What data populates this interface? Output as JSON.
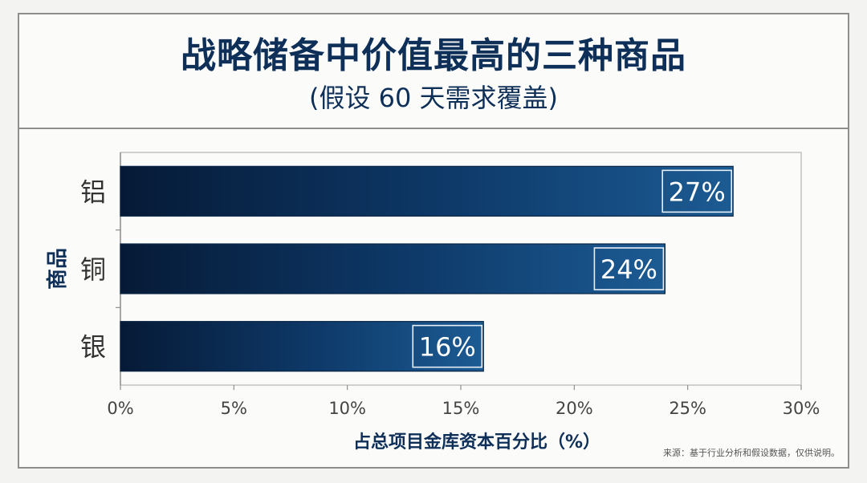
{
  "header": {
    "title": "战略储备中价值最高的三种商品",
    "subtitle": "(假设 60 天需求覆盖)"
  },
  "footnote": "来源：基于行业分析和假设数据，仅供说明。",
  "colors": {
    "bar_dark": "#061a36",
    "bar_light": "#1c5b93",
    "text": "#0e2f58",
    "axis": "#8e8e8e"
  },
  "chart_data": {
    "type": "bar",
    "orientation": "horizontal",
    "categories": [
      "铝",
      "铜",
      "银"
    ],
    "values": [
      27,
      24,
      16
    ],
    "value_labels": [
      "27%",
      "24%",
      "16%"
    ],
    "xlabel": "占总项目金库资本百分比（%）",
    "ylabel": "商品",
    "xlim": [
      0,
      30
    ],
    "xticks": [
      "0%",
      "5%",
      "10%",
      "15%",
      "20%",
      "25%",
      "30%"
    ],
    "grid": false,
    "legend": "none"
  }
}
